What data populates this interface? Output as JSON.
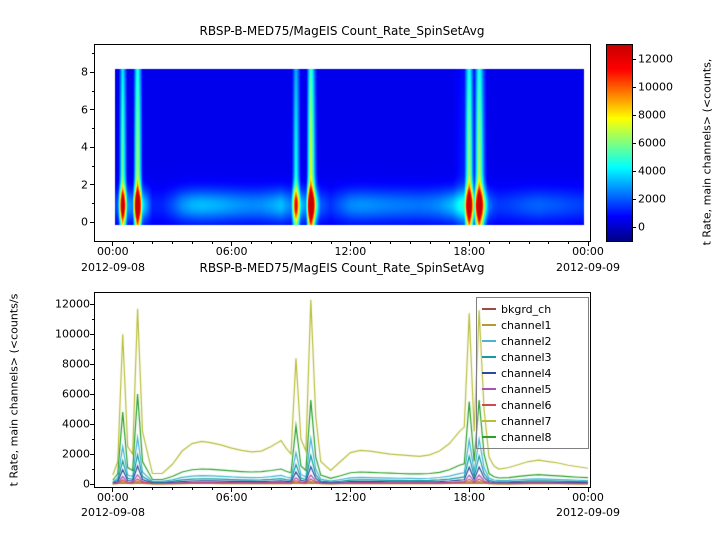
{
  "chart_data": [
    {
      "type": "heatmap",
      "title": "RBSP-B-MED75/MagEIS  Count_Rate_SpinSetAvg",
      "xlim": [
        -0.9,
        24.1
      ],
      "ylim": [
        -1.0,
        9.44
      ],
      "zlim": [
        -1000,
        13000
      ],
      "yticks": [
        0,
        2,
        4,
        6,
        8
      ],
      "xticks": {
        "hours": [
          0,
          6,
          12,
          18,
          24
        ],
        "labels": [
          "00:00",
          "06:00",
          "12:00",
          "18:00",
          "00:00"
        ]
      },
      "x_date_left": "2012-09-08",
      "x_date_right": "2012-09-09",
      "colormap": [
        [
          0,
          "#000083"
        ],
        [
          0.125,
          "#0000ff"
        ],
        [
          0.375,
          "#00ffff"
        ],
        [
          0.625,
          "#ffff00"
        ],
        [
          0.875,
          "#ff0000"
        ],
        [
          1,
          "#c80000"
        ]
      ],
      "colorbar": {
        "ticks": [
          0,
          2000,
          4000,
          6000,
          8000,
          10000,
          12000
        ],
        "label": "t Rate, main channels> (<counts,"
      },
      "z_model": {
        "base_series": "channel7",
        "band_center": 0.9,
        "band_sigma": 0.6,
        "bg_offset": 500,
        "streak_threshold": 3000,
        "streak_gain": 0.8,
        "streak_sigma": 8,
        "t_range": [
          0.1,
          23.8
        ],
        "y_range": [
          -0.15,
          8.15
        ]
      }
    },
    {
      "type": "line",
      "title": "RBSP-B-MED75/MagEIS  Count_Rate_SpinSetAvg",
      "ylabel": "t Rate, main channels> (<counts/s",
      "xlim": [
        -0.9,
        24.1
      ],
      "ylim": [
        -200,
        12750
      ],
      "yticks": [
        0,
        2000,
        4000,
        6000,
        8000,
        10000,
        12000
      ],
      "xticks": {
        "hours": [
          0,
          6,
          12,
          18,
          24
        ],
        "labels": [
          "00:00",
          "06:00",
          "12:00",
          "18:00",
          "00:00"
        ]
      },
      "x_date_left": "2012-09-08",
      "x_date_right": "2012-09-09",
      "legend": {
        "position": "top-right"
      },
      "x_hours": [
        0,
        0.25,
        0.5,
        0.75,
        1,
        1.25,
        1.5,
        2,
        2.5,
        3,
        3.5,
        4,
        4.5,
        5,
        5.5,
        6,
        6.5,
        7,
        7.5,
        8,
        8.5,
        8.75,
        9,
        9.25,
        9.5,
        9.75,
        10,
        10.25,
        10.5,
        11,
        11.5,
        12,
        12.5,
        13,
        13.5,
        14,
        14.5,
        15,
        15.5,
        16,
        16.5,
        17,
        17.5,
        17.75,
        18,
        18.25,
        18.5,
        18.75,
        19,
        19.25,
        19.5,
        20,
        20.5,
        21,
        21.5,
        22,
        22.5,
        23,
        23.5,
        24
      ],
      "series": [
        {
          "name": "bkgrd_ch",
          "color": "#9e4a41",
          "values": [
            60,
            60,
            70,
            60,
            60,
            70,
            60,
            55,
            55,
            55,
            55,
            55,
            55,
            55,
            55,
            55,
            55,
            55,
            55,
            55,
            55,
            55,
            55,
            65,
            55,
            55,
            70,
            60,
            55,
            50,
            50,
            55,
            55,
            55,
            55,
            50,
            50,
            50,
            50,
            50,
            55,
            55,
            55,
            55,
            70,
            60,
            70,
            60,
            55,
            50,
            50,
            50,
            50,
            50,
            50,
            50,
            50,
            50,
            50,
            50
          ]
        },
        {
          "name": "channel1",
          "color": "#b39b2f",
          "values": [
            10,
            23,
            150,
            36,
            30,
            185,
            48,
            10,
            10,
            17,
            26,
            32,
            34,
            33,
            31,
            28,
            27,
            26,
            26,
            29,
            34,
            28,
            24,
            125,
            38,
            28,
            180,
            59,
            19,
            12,
            18,
            25,
            26,
            26,
            25,
            24,
            23,
            23,
            22,
            23,
            26,
            32,
            41,
            45,
            178,
            49,
            180,
            66,
            23,
            16,
            13,
            14,
            17,
            20,
            21,
            20,
            18,
            16,
            15,
            14
          ]
        },
        {
          "name": "channel2",
          "color": "#45b4d6",
          "values": [
            140,
            380,
            2500,
            600,
            500,
            3100,
            800,
            170,
            170,
            280,
            440,
            530,
            560,
            540,
            510,
            470,
            445,
            425,
            435,
            490,
            570,
            470,
            400,
            2100,
            640,
            470,
            3050,
            980,
            320,
            195,
            300,
            415,
            440,
            430,
            415,
            395,
            385,
            375,
            365,
            385,
            435,
            530,
            690,
            750,
            2950,
            820,
            3000,
            1100,
            390,
            265,
            220,
            240,
            285,
            325,
            345,
            325,
            300,
            270,
            250,
            230
          ]
        },
        {
          "name": "channel3",
          "color": "#0f9e9e",
          "values": [
            90,
            240,
            1550,
            380,
            310,
            1950,
            500,
            110,
            110,
            175,
            275,
            330,
            350,
            340,
            320,
            295,
            280,
            265,
            270,
            305,
            355,
            295,
            250,
            1300,
            400,
            295,
            1900,
            610,
            200,
            120,
            185,
            260,
            275,
            270,
            260,
            245,
            240,
            235,
            230,
            240,
            270,
            330,
            430,
            470,
            1850,
            510,
            1880,
            690,
            245,
            165,
            140,
            150,
            180,
            205,
            215,
            205,
            190,
            170,
            155,
            145
          ]
        },
        {
          "name": "channel4",
          "color": "#2b4aa3",
          "values": [
            55,
            145,
            950,
            230,
            190,
            1200,
            300,
            65,
            65,
            105,
            165,
            200,
            210,
            205,
            195,
            180,
            170,
            160,
            165,
            185,
            215,
            180,
            150,
            800,
            240,
            180,
            1150,
            370,
            120,
            75,
            115,
            155,
            165,
            160,
            155,
            150,
            145,
            140,
            140,
            145,
            165,
            200,
            260,
            285,
            1120,
            310,
            1140,
            420,
            150,
            100,
            85,
            90,
            110,
            125,
            130,
            125,
            115,
            105,
            95,
            90
          ]
        },
        {
          "name": "channel5",
          "color": "#a753b5",
          "values": [
            30,
            75,
            500,
            120,
            100,
            620,
            160,
            35,
            35,
            55,
            85,
            105,
            110,
            108,
            102,
            95,
            90,
            85,
            87,
            98,
            114,
            95,
            80,
            420,
            128,
            95,
            600,
            195,
            64,
            40,
            60,
            83,
            88,
            86,
            83,
            79,
            77,
            75,
            73,
            77,
            87,
            106,
            138,
            150,
            590,
            164,
            600,
            220,
            78,
            53,
            44,
            48,
            57,
            65,
            69,
            65,
            60,
            54,
            50,
            46
          ]
        },
        {
          "name": "channel6",
          "color": "#cf4a4a",
          "values": [
            17,
            42,
            280,
            66,
            55,
            340,
            88,
            19,
            19,
            31,
            48,
            58,
            62,
            60,
            56,
            52,
            49,
            47,
            48,
            54,
            63,
            52,
            44,
            230,
            70,
            52,
            335,
            108,
            35,
            21,
            33,
            46,
            48,
            47,
            46,
            44,
            42,
            41,
            40,
            42,
            48,
            58,
            76,
            83,
            325,
            90,
            330,
            121,
            43,
            29,
            24,
            26,
            31,
            36,
            38,
            36,
            33,
            30,
            27,
            25
          ]
        },
        {
          "name": "channel7",
          "color": "#b9bd38",
          "values": [
            600,
            1500,
            10000,
            2500,
            2000,
            11700,
            3500,
            700,
            700,
            1300,
            2200,
            2700,
            2850,
            2750,
            2600,
            2400,
            2250,
            2150,
            2200,
            2500,
            2900,
            2400,
            2000,
            8400,
            3000,
            2200,
            12300,
            4500,
            1500,
            900,
            1500,
            2100,
            2250,
            2200,
            2100,
            2000,
            1950,
            1900,
            1850,
            1950,
            2200,
            2700,
            3500,
            3800,
            11400,
            3500,
            11600,
            5000,
            1800,
            1200,
            1000,
            1100,
            1300,
            1500,
            1600,
            1500,
            1400,
            1250,
            1150,
            1050
          ]
        },
        {
          "name": "channel8",
          "color": "#2ca02c",
          "values": [
            250,
            700,
            4800,
            1100,
            900,
            6000,
            1500,
            300,
            300,
            500,
            800,
            950,
            1000,
            980,
            920,
            870,
            830,
            800,
            820,
            900,
            1000,
            850,
            750,
            3900,
            1200,
            900,
            5600,
            1800,
            600,
            380,
            550,
            750,
            800,
            780,
            750,
            720,
            700,
            680,
            670,
            700,
            780,
            950,
            1250,
            1350,
            5500,
            1500,
            5600,
            2000,
            700,
            480,
            400,
            430,
            510,
            580,
            620,
            580,
            540,
            490,
            450,
            420
          ]
        }
      ]
    }
  ]
}
